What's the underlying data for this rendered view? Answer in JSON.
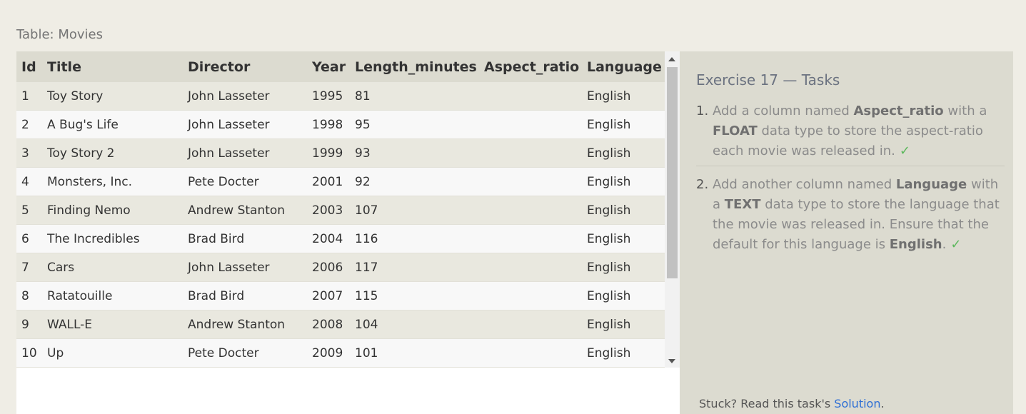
{
  "table_label": "Table: Movies",
  "table": {
    "columns": [
      "Id",
      "Title",
      "Director",
      "Year",
      "Length_minutes",
      "Aspect_ratio",
      "Language"
    ],
    "rows": [
      [
        "1",
        "Toy Story",
        "John Lasseter",
        "1995",
        "81",
        "",
        "English"
      ],
      [
        "2",
        "A Bug's Life",
        "John Lasseter",
        "1998",
        "95",
        "",
        "English"
      ],
      [
        "3",
        "Toy Story 2",
        "John Lasseter",
        "1999",
        "93",
        "",
        "English"
      ],
      [
        "4",
        "Monsters, Inc.",
        "Pete Docter",
        "2001",
        "92",
        "",
        "English"
      ],
      [
        "5",
        "Finding Nemo",
        "Andrew Stanton",
        "2003",
        "107",
        "",
        "English"
      ],
      [
        "6",
        "The Incredibles",
        "Brad Bird",
        "2004",
        "116",
        "",
        "English"
      ],
      [
        "7",
        "Cars",
        "John Lasseter",
        "2006",
        "117",
        "",
        "English"
      ],
      [
        "8",
        "Ratatouille",
        "Brad Bird",
        "2007",
        "115",
        "",
        "English"
      ],
      [
        "9",
        "WALL-E",
        "Andrew Stanton",
        "2008",
        "104",
        "",
        "English"
      ],
      [
        "10",
        "Up",
        "Pete Docter",
        "2009",
        "101",
        "",
        "English"
      ]
    ]
  },
  "exercise": {
    "title": "Exercise 17 — Tasks",
    "tasks": [
      {
        "number": "1.",
        "parts": {
          "a": "Add a column named ",
          "b": "Aspect_ratio",
          "c": " with a ",
          "d": "FLOAT",
          "e": " data type to store the aspect-ratio each movie was released in."
        },
        "check": "✓"
      },
      {
        "number": "2.",
        "parts": {
          "a": "Add another column named ",
          "b": "Language",
          "c": " with a ",
          "d": "TEXT",
          "e": " data type to store the language that the movie was released in. Ensure that the default for this language is ",
          "f": "English",
          "g": "."
        },
        "check": "✓"
      }
    ]
  },
  "footer": {
    "stuck_text": "Stuck? Read this task's ",
    "solution_link": "Solution",
    "period": "."
  }
}
